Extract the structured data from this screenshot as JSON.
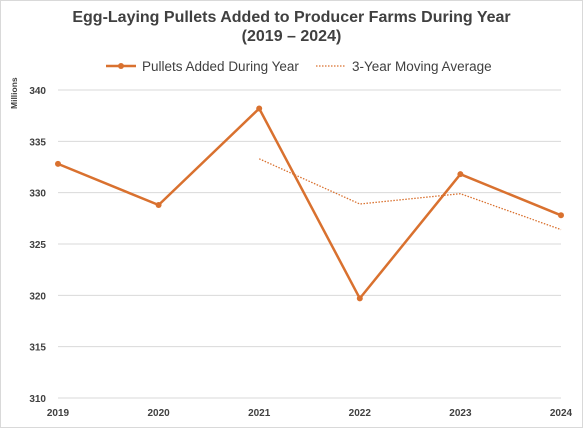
{
  "chart_data": {
    "type": "line",
    "title_line1": "Egg-Laying Pullets Added to Producer Farms During Year",
    "title_line2": "(2019 – 2024)",
    "xlabel": "",
    "ylabel": "Millions",
    "categories": [
      "2019",
      "2020",
      "2021",
      "2022",
      "2023",
      "2024"
    ],
    "ylim": [
      310,
      340
    ],
    "yticks": [
      310,
      315,
      320,
      325,
      330,
      335,
      340
    ],
    "grid": true,
    "legend_position": "top",
    "series": [
      {
        "name": "Pullets Added During Year",
        "style": "solid-marker",
        "color": "#d9712f",
        "values": [
          332.8,
          328.8,
          338.2,
          319.7,
          331.8,
          327.8
        ]
      },
      {
        "name": "3-Year Moving Average",
        "style": "dotted",
        "color": "#d9712f",
        "values": [
          null,
          null,
          333.3,
          328.9,
          329.9,
          326.4
        ]
      }
    ]
  }
}
